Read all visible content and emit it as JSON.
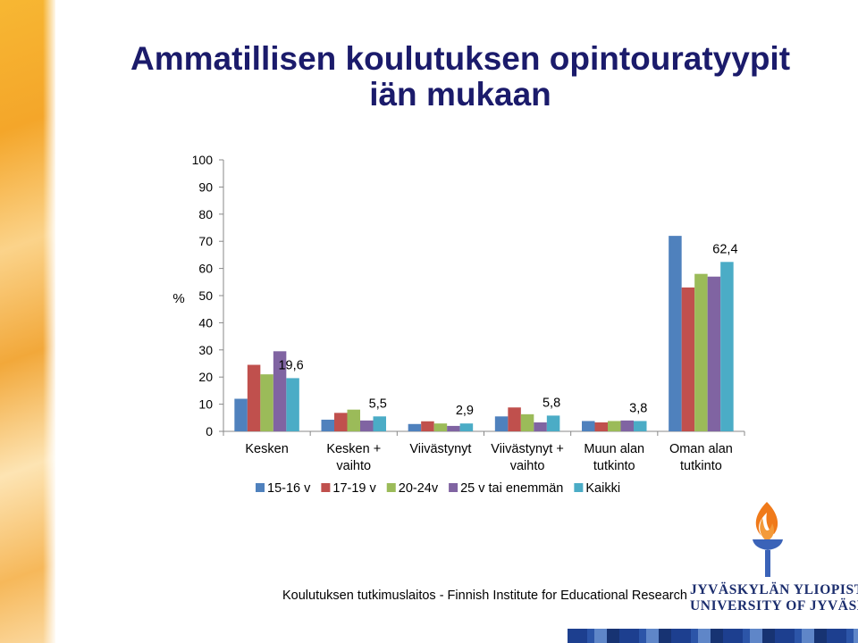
{
  "title": "Ammatillisen koulutuksen opintouratyypit iän mukaan",
  "title_line1": "Ammatillisen koulutuksen opintouratyypit",
  "title_line2": "iän mukaan",
  "footer": "Koulutuksen tutkimuslaitos - Finnish Institute for Educational Research",
  "logo": {
    "icon": "torch-icon",
    "line1": "JYVÄSKYLÄN YLIOPISTO",
    "line2": "UNIVERSITY OF JYVÄSKYLÄ"
  },
  "colors": {
    "title": "#1b1b6b",
    "series": [
      "#4f81bd",
      "#c0504d",
      "#9bbb59",
      "#8064a2",
      "#4bacc6"
    ]
  },
  "chart_data": {
    "type": "bar",
    "ylabel": "%",
    "ylim": [
      0,
      100
    ],
    "yticks": [
      0,
      10,
      20,
      30,
      40,
      50,
      60,
      70,
      80,
      90,
      100
    ],
    "grid": false,
    "legend_position": "bottom",
    "categories": [
      [
        "Kesken"
      ],
      [
        "Kesken +",
        "vaihto"
      ],
      [
        "Viivästynyt"
      ],
      [
        "Viivästynyt +",
        "vaihto"
      ],
      [
        "Muun alan",
        "tutkinto"
      ],
      [
        "Oman alan",
        "tutkinto"
      ]
    ],
    "series": [
      {
        "name": "15-16 v",
        "values": [
          12,
          4.3,
          2.7,
          5.5,
          3.8,
          72
        ]
      },
      {
        "name": "17-19 v",
        "values": [
          24.5,
          6.8,
          3.7,
          8.8,
          3.3,
          53
        ]
      },
      {
        "name": "20-24v",
        "values": [
          21,
          8,
          2.9,
          6.3,
          3.8,
          58
        ]
      },
      {
        "name": "25 v tai enemmän",
        "values": [
          29.5,
          4,
          2,
          3.3,
          4,
          57
        ]
      },
      {
        "name": "Kaikki",
        "values": [
          19.6,
          5.5,
          2.9,
          5.8,
          3.8,
          62.4
        ]
      }
    ],
    "data_labels": [
      "19,6",
      "5,5",
      "2,9",
      "5,8",
      "3,8",
      "62,4"
    ]
  }
}
